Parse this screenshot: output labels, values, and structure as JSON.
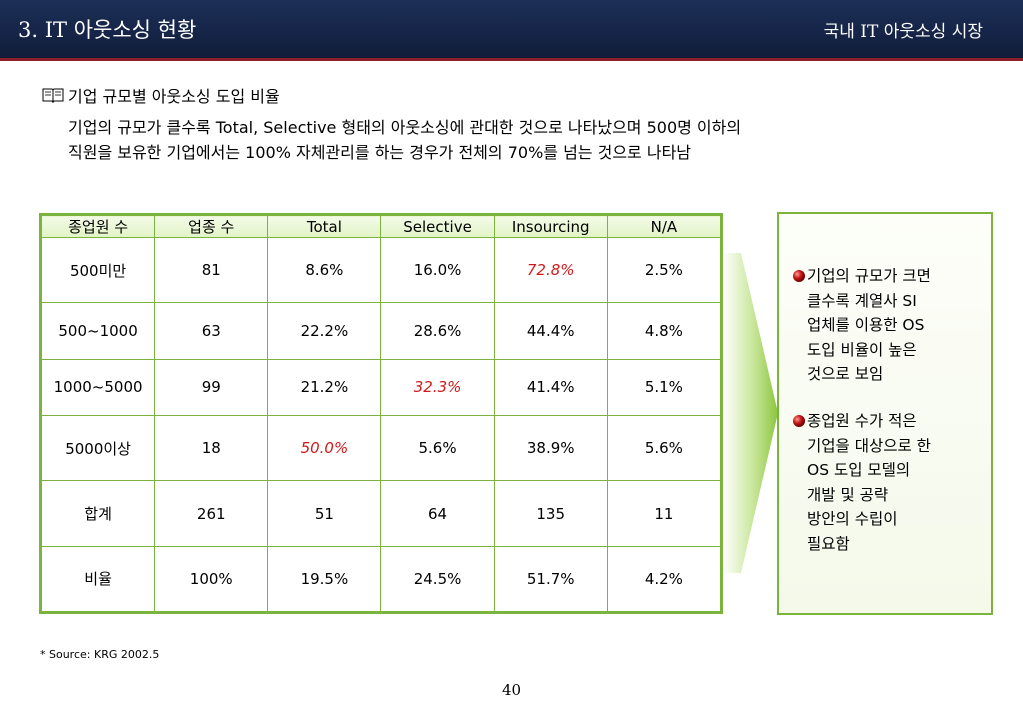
{
  "header": {
    "title": "3. IT 아웃소싱 현황",
    "subtitle": "국내 IT 아웃소싱 시장"
  },
  "section": {
    "title": "기업 규모별 아웃소싱 도입 비율",
    "desc_line1": "기업의 규모가 클수록 Total, Selective 형태의 아웃소싱에 관대한 것으로 나타났으며 500명 이하의",
    "desc_line2": "직원을 보유한 기업에서는 100% 자체관리를 하는 경우가 전체의 70%를 넘는 것으로 나타남"
  },
  "table": {
    "headers": [
      "종업원 수",
      "업종 수",
      "Total",
      "Selective",
      "Insourcing",
      "N/A"
    ],
    "rows": [
      [
        "500미만",
        "81",
        "8.6%",
        "16.0%",
        "72.8%",
        "2.5%"
      ],
      [
        "500~1000",
        "63",
        "22.2%",
        "28.6%",
        "44.4%",
        "4.8%"
      ],
      [
        "1000~5000",
        "99",
        "21.2%",
        "32.3%",
        "41.4%",
        "5.1%"
      ],
      [
        "5000이상",
        "18",
        "50.0%",
        "5.6%",
        "38.9%",
        "5.6%"
      ],
      [
        "합계",
        "261",
        "51",
        "64",
        "135",
        "11"
      ],
      [
        "비율",
        "100%",
        "19.5%",
        "24.5%",
        "51.7%",
        "4.2%"
      ]
    ],
    "highlight_color": "#d21818"
  },
  "notes": {
    "item1": [
      "기업의 규모가 크면",
      "클수록 계열사 SI",
      "업체를 이용한 OS",
      "도입 비율이 높은",
      "것으로 보임"
    ],
    "item2": [
      "종업원 수가 적은",
      "기업을 대상으로 한",
      "OS 도입 모델의",
      "개발 및 공략",
      "방안의 수립이",
      "필요함"
    ],
    "bullet_icon": "red-ball-bullet-icon"
  },
  "footer": {
    "source": "* Source: KRG 2002.5",
    "page": "40"
  },
  "colors": {
    "header_bg": "#152447",
    "accent_red": "#8c1f2a",
    "table_border": "#7ab43c"
  }
}
